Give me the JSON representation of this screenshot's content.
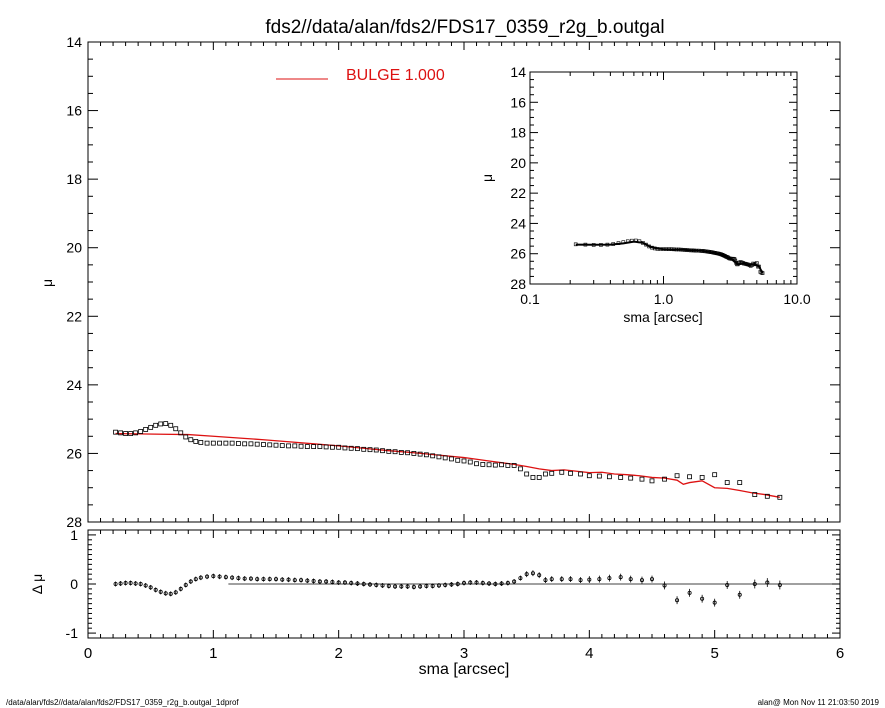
{
  "title": "fds2//data/alan/fds2/FDS17_0359_r2g_b.outgal",
  "footer": {
    "left": "/data/alan/fds2//data/alan/fds2/FDS17_0359_r2g_b.outgal_1dprof",
    "right": "alan@  Mon Nov 11 21:03:50 2019"
  },
  "colors": {
    "model": "#dd1111",
    "data": "#000000",
    "axes": "#000000"
  },
  "chart_data": [
    {
      "id": "main",
      "type": "scatter",
      "xlabel": "",
      "ylabel": "μ",
      "xlim": [
        0,
        6
      ],
      "ylim": [
        28,
        14
      ],
      "yinverted": true,
      "yticks": [
        "14",
        "16",
        "18",
        "20",
        "22",
        "24",
        "26",
        "28"
      ],
      "legend": {
        "position": "top-center",
        "label": "BULGE  1.000"
      },
      "series": [
        {
          "kind": "data",
          "x": [
            0.22,
            0.26,
            0.3,
            0.34,
            0.38,
            0.42,
            0.46,
            0.5,
            0.54,
            0.58,
            0.62,
            0.66,
            0.7,
            0.74,
            0.78,
            0.82,
            0.86,
            0.9,
            0.95,
            1.0,
            1.05,
            1.1,
            1.15,
            1.2,
            1.25,
            1.3,
            1.35,
            1.4,
            1.45,
            1.5,
            1.55,
            1.6,
            1.65,
            1.7,
            1.75,
            1.8,
            1.85,
            1.9,
            1.95,
            2.0,
            2.05,
            2.1,
            2.15,
            2.2,
            2.25,
            2.3,
            2.35,
            2.4,
            2.45,
            2.5,
            2.55,
            2.6,
            2.65,
            2.7,
            2.75,
            2.8,
            2.85,
            2.9,
            2.95,
            3.0,
            3.05,
            3.1,
            3.15,
            3.2,
            3.25,
            3.3,
            3.35,
            3.4,
            3.45,
            3.5,
            3.55,
            3.6,
            3.65,
            3.7,
            3.78,
            3.85,
            3.93,
            4.0,
            4.08,
            4.16,
            4.25,
            4.33,
            4.42,
            4.5,
            4.6,
            4.7,
            4.8,
            4.9,
            5.0,
            5.1,
            5.2,
            5.32,
            5.42,
            5.52
          ],
          "y": [
            25.38,
            25.4,
            25.42,
            25.42,
            25.4,
            25.36,
            25.3,
            25.24,
            25.18,
            25.14,
            25.13,
            25.18,
            25.28,
            25.4,
            25.52,
            25.6,
            25.65,
            25.68,
            25.7,
            25.7,
            25.7,
            25.7,
            25.7,
            25.71,
            25.72,
            25.72,
            25.73,
            25.74,
            25.75,
            25.76,
            25.77,
            25.78,
            25.78,
            25.79,
            25.8,
            25.8,
            25.8,
            25.81,
            25.82,
            25.82,
            25.84,
            25.85,
            25.86,
            25.88,
            25.89,
            25.9,
            25.92,
            25.94,
            25.95,
            25.97,
            25.98,
            26.0,
            26.02,
            26.04,
            26.07,
            26.1,
            26.13,
            26.16,
            26.2,
            26.22,
            26.25,
            26.3,
            26.32,
            26.33,
            26.34,
            26.33,
            26.35,
            26.35,
            26.45,
            26.6,
            26.7,
            26.7,
            26.6,
            26.58,
            26.55,
            26.58,
            26.6,
            26.65,
            26.66,
            26.68,
            26.7,
            26.72,
            26.75,
            26.8,
            26.75,
            26.65,
            26.68,
            26.7,
            26.62,
            26.85,
            26.85,
            27.2,
            27.25,
            27.28
          ]
        },
        {
          "kind": "model",
          "name": "BULGE  1.000",
          "x": [
            0.22,
            0.4,
            0.6,
            0.8,
            1.0,
            1.2,
            1.4,
            1.6,
            1.8,
            2.0,
            2.2,
            2.4,
            2.6,
            2.8,
            3.0,
            3.2,
            3.4,
            3.5,
            3.6,
            3.7,
            3.8,
            3.9,
            4.0,
            4.1,
            4.2,
            4.3,
            4.4,
            4.5,
            4.6,
            4.7,
            4.75,
            4.8,
            4.9,
            5.0,
            5.1,
            5.2,
            5.3,
            5.4,
            5.52
          ],
          "y": [
            25.42,
            25.43,
            25.44,
            25.45,
            25.5,
            25.55,
            25.6,
            25.66,
            25.72,
            25.78,
            25.85,
            25.92,
            25.98,
            26.05,
            26.12,
            26.22,
            26.32,
            26.38,
            26.45,
            26.5,
            26.48,
            26.52,
            26.56,
            26.55,
            26.6,
            26.62,
            26.65,
            26.7,
            26.72,
            26.78,
            26.9,
            26.85,
            26.8,
            27.0,
            27.02,
            27.08,
            27.15,
            27.2,
            27.28
          ]
        }
      ]
    },
    {
      "id": "residual",
      "type": "scatter",
      "xlabel": "sma [arcsec]",
      "ylabel": "Δ μ",
      "xlim": [
        0,
        6
      ],
      "ylim": [
        -1.1,
        1.1
      ],
      "xticks": [
        "0",
        "1",
        "2",
        "3",
        "4",
        "5",
        "6"
      ],
      "yticks": [
        "1",
        "0",
        "-1"
      ],
      "zero_line": {
        "x_start": 1.12,
        "x_end": 6,
        "y": 0
      },
      "series": [
        {
          "kind": "residual",
          "x": [
            0.22,
            0.26,
            0.3,
            0.34,
            0.38,
            0.42,
            0.46,
            0.5,
            0.54,
            0.58,
            0.62,
            0.66,
            0.7,
            0.74,
            0.78,
            0.82,
            0.86,
            0.9,
            0.95,
            1.0,
            1.05,
            1.1,
            1.15,
            1.2,
            1.25,
            1.3,
            1.35,
            1.4,
            1.45,
            1.5,
            1.55,
            1.6,
            1.65,
            1.7,
            1.75,
            1.8,
            1.85,
            1.9,
            1.95,
            2.0,
            2.05,
            2.1,
            2.15,
            2.2,
            2.25,
            2.3,
            2.35,
            2.4,
            2.45,
            2.5,
            2.55,
            2.6,
            2.65,
            2.7,
            2.75,
            2.8,
            2.85,
            2.9,
            2.95,
            3.0,
            3.05,
            3.1,
            3.15,
            3.2,
            3.25,
            3.3,
            3.35,
            3.4,
            3.45,
            3.5,
            3.55,
            3.6,
            3.65,
            3.7,
            3.78,
            3.85,
            3.93,
            4.0,
            4.08,
            4.16,
            4.25,
            4.33,
            4.42,
            4.5,
            4.6,
            4.7,
            4.8,
            4.9,
            5.0,
            5.1,
            5.2,
            5.32,
            5.42,
            5.52
          ],
          "y": [
            0.0,
            0.01,
            0.02,
            0.02,
            0.01,
            0.0,
            -0.03,
            -0.07,
            -0.12,
            -0.16,
            -0.19,
            -0.2,
            -0.17,
            -0.1,
            -0.02,
            0.05,
            0.1,
            0.13,
            0.15,
            0.16,
            0.15,
            0.14,
            0.13,
            0.12,
            0.11,
            0.11,
            0.1,
            0.1,
            0.1,
            0.1,
            0.09,
            0.09,
            0.08,
            0.08,
            0.07,
            0.06,
            0.05,
            0.05,
            0.04,
            0.03,
            0.03,
            0.02,
            0.01,
            0.0,
            -0.01,
            -0.02,
            -0.03,
            -0.04,
            -0.05,
            -0.05,
            -0.05,
            -0.06,
            -0.05,
            -0.04,
            -0.04,
            -0.03,
            -0.02,
            -0.01,
            0.0,
            0.02,
            0.03,
            0.03,
            0.02,
            0.01,
            0.0,
            0.01,
            0.02,
            0.05,
            0.12,
            0.2,
            0.22,
            0.18,
            0.08,
            0.1,
            0.1,
            0.1,
            0.08,
            0.09,
            0.1,
            0.12,
            0.14,
            0.1,
            0.08,
            0.1,
            -0.03,
            -0.33,
            -0.18,
            -0.3,
            -0.38,
            -0.02,
            -0.22,
            0.0,
            0.03,
            -0.02
          ],
          "err": [
            0.01,
            0.01,
            0.01,
            0.01,
            0.01,
            0.01,
            0.01,
            0.01,
            0.01,
            0.01,
            0.01,
            0.01,
            0.01,
            0.01,
            0.01,
            0.01,
            0.01,
            0.01,
            0.01,
            0.01,
            0.02,
            0.02,
            0.02,
            0.02,
            0.02,
            0.02,
            0.02,
            0.02,
            0.02,
            0.02,
            0.03,
            0.03,
            0.03,
            0.03,
            0.03,
            0.03,
            0.03,
            0.03,
            0.03,
            0.03,
            0.03,
            0.03,
            0.03,
            0.03,
            0.03,
            0.03,
            0.03,
            0.03,
            0.03,
            0.03,
            0.04,
            0.04,
            0.04,
            0.04,
            0.04,
            0.04,
            0.04,
            0.04,
            0.04,
            0.04,
            0.05,
            0.05,
            0.05,
            0.05,
            0.05,
            0.05,
            0.05,
            0.05,
            0.05,
            0.06,
            0.06,
            0.06,
            0.06,
            0.06,
            0.06,
            0.06,
            0.06,
            0.07,
            0.07,
            0.07,
            0.07,
            0.07,
            0.07,
            0.07,
            0.08,
            0.08,
            0.08,
            0.08,
            0.08,
            0.08,
            0.08,
            0.09,
            0.09,
            0.09
          ]
        }
      ]
    },
    {
      "id": "inset",
      "type": "scatter",
      "xlabel": "sma [arcsec]",
      "ylabel": "μ",
      "xscale": "log",
      "xlim": [
        0.1,
        10.0
      ],
      "ylim": [
        28,
        14
      ],
      "yinverted": true,
      "xticks": [
        "0.1",
        "1.0",
        "10.0"
      ],
      "yticks": [
        "14",
        "16",
        "18",
        "20",
        "22",
        "24",
        "26",
        "28"
      ],
      "series": [
        {
          "kind": "data",
          "x": [
            0.22,
            0.26,
            0.3,
            0.34,
            0.38,
            0.42,
            0.46,
            0.5,
            0.54,
            0.58,
            0.62,
            0.66,
            0.7,
            0.74,
            0.78,
            0.82,
            0.86,
            0.9,
            0.95,
            1.0,
            1.05,
            1.1,
            1.15,
            1.2,
            1.25,
            1.3,
            1.35,
            1.4,
            1.45,
            1.5,
            1.55,
            1.6,
            1.65,
            1.7,
            1.75,
            1.8,
            1.85,
            1.9,
            1.95,
            2.0,
            2.05,
            2.1,
            2.15,
            2.2,
            2.25,
            2.3,
            2.35,
            2.4,
            2.45,
            2.5,
            2.55,
            2.6,
            2.65,
            2.7,
            2.75,
            2.8,
            2.85,
            2.9,
            2.95,
            3.0,
            3.05,
            3.1,
            3.15,
            3.2,
            3.25,
            3.3,
            3.35,
            3.4,
            3.45,
            3.5,
            3.55,
            3.6,
            3.65,
            3.7,
            3.78,
            3.85,
            3.93,
            4.0,
            4.08,
            4.16,
            4.25,
            4.33,
            4.42,
            4.5,
            4.6,
            4.7,
            4.8,
            4.9,
            5.0,
            5.1,
            5.2,
            5.32,
            5.42,
            5.52
          ],
          "y": [
            25.38,
            25.4,
            25.42,
            25.42,
            25.4,
            25.36,
            25.3,
            25.24,
            25.18,
            25.14,
            25.13,
            25.18,
            25.28,
            25.4,
            25.52,
            25.6,
            25.65,
            25.68,
            25.7,
            25.7,
            25.7,
            25.7,
            25.7,
            25.71,
            25.72,
            25.72,
            25.73,
            25.74,
            25.75,
            25.76,
            25.77,
            25.78,
            25.78,
            25.79,
            25.8,
            25.8,
            25.8,
            25.81,
            25.82,
            25.82,
            25.84,
            25.85,
            25.86,
            25.88,
            25.89,
            25.9,
            25.92,
            25.94,
            25.95,
            25.97,
            25.98,
            26.0,
            26.02,
            26.04,
            26.07,
            26.1,
            26.13,
            26.16,
            26.2,
            26.22,
            26.25,
            26.3,
            26.32,
            26.33,
            26.34,
            26.33,
            26.35,
            26.35,
            26.45,
            26.6,
            26.7,
            26.7,
            26.6,
            26.58,
            26.55,
            26.58,
            26.6,
            26.65,
            26.66,
            26.68,
            26.7,
            26.72,
            26.75,
            26.8,
            26.75,
            26.65,
            26.68,
            26.7,
            26.62,
            26.85,
            26.85,
            27.2,
            27.25,
            27.28
          ]
        },
        {
          "kind": "model",
          "x": [
            0.22,
            0.3,
            0.4,
            0.5,
            0.6,
            0.7,
            0.8,
            0.9,
            1.0,
            1.2,
            1.4,
            1.6,
            1.8,
            2.0,
            2.4,
            2.8,
            3.2,
            3.6,
            4.0,
            4.4,
            4.8,
            5.2,
            5.52
          ],
          "y": [
            25.4,
            25.41,
            25.4,
            25.32,
            25.2,
            25.28,
            25.55,
            25.66,
            25.7,
            25.72,
            25.74,
            25.77,
            25.8,
            25.82,
            25.94,
            26.1,
            26.33,
            26.7,
            26.65,
            26.75,
            26.68,
            26.85,
            27.28
          ]
        }
      ]
    }
  ]
}
